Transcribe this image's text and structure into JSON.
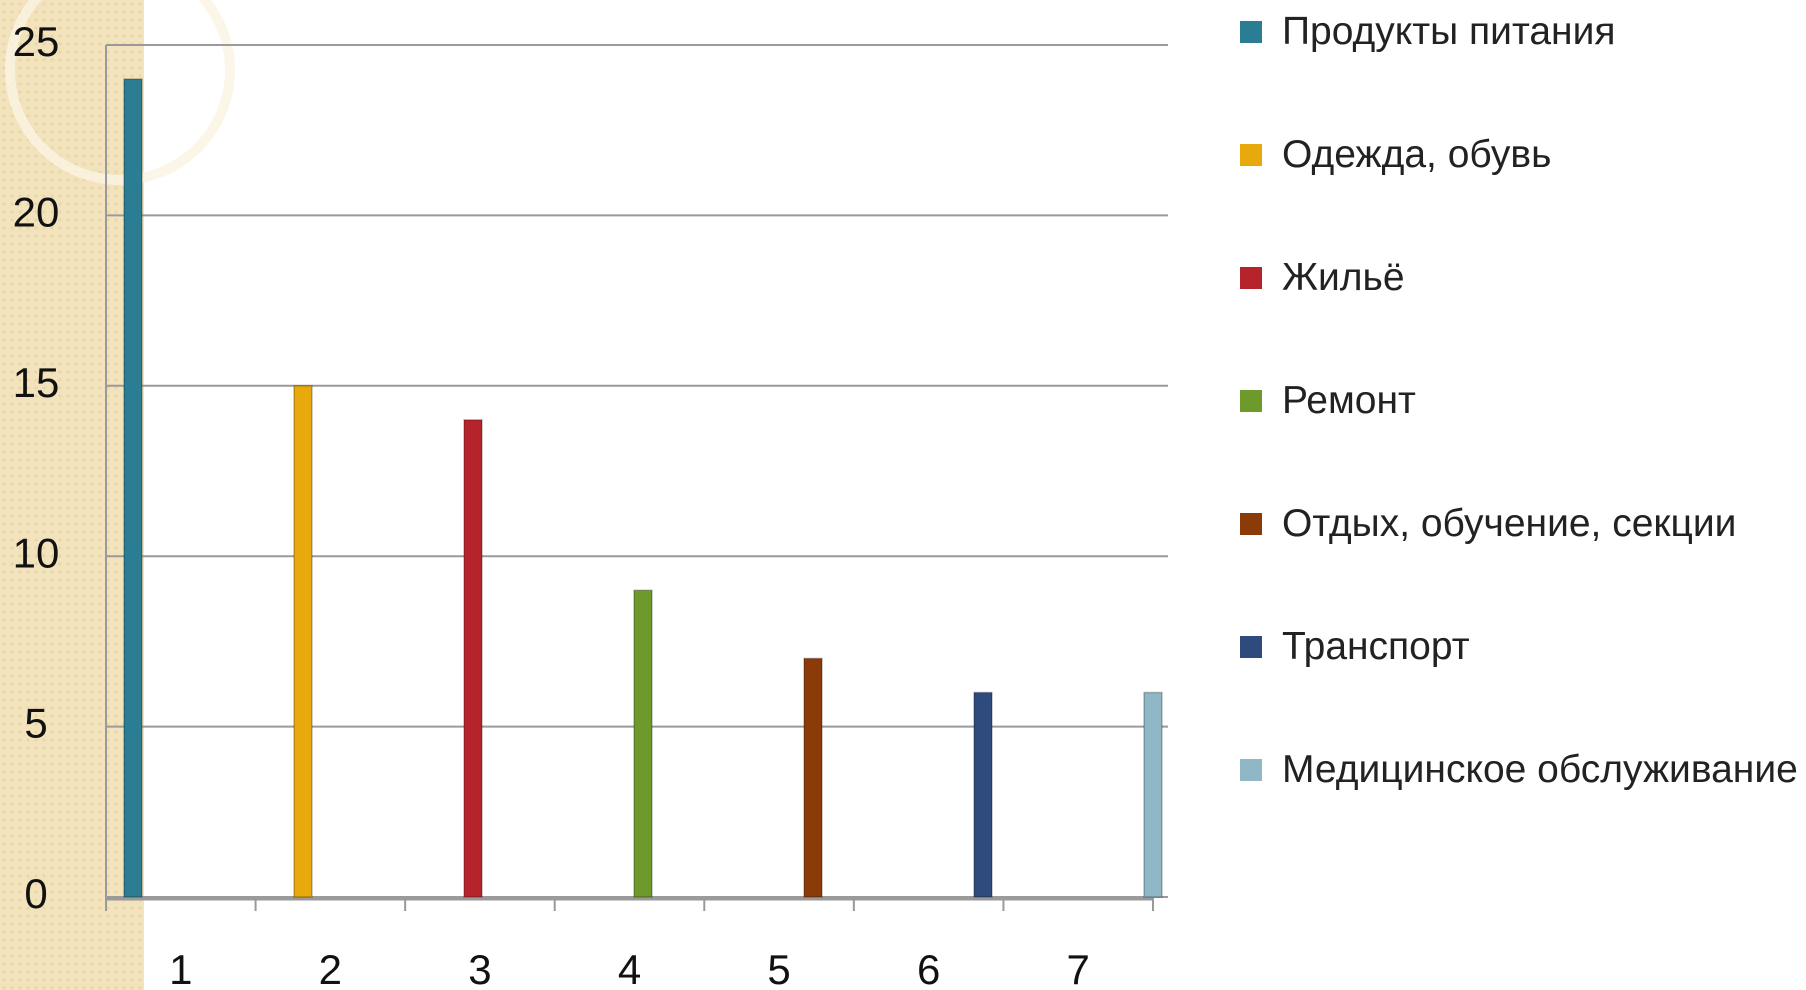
{
  "chart_data": {
    "type": "bar",
    "categories": [
      "1",
      "2",
      "3",
      "4",
      "5",
      "6",
      "7"
    ],
    "series": [
      {
        "name": "Продукты питания",
        "color": "#2a7d93",
        "values": [
          24,
          null,
          null,
          null,
          null,
          null,
          null
        ]
      },
      {
        "name": "Одежда, обувь",
        "color": "#e8a90c",
        "values": [
          null,
          15,
          null,
          null,
          null,
          null,
          null
        ]
      },
      {
        "name": "Жильё",
        "color": "#b6232b",
        "values": [
          null,
          null,
          14,
          null,
          null,
          null,
          null
        ]
      },
      {
        "name": "Ремонт",
        "color": "#6e9a2b",
        "values": [
          null,
          null,
          null,
          9,
          null,
          null,
          null
        ]
      },
      {
        "name": "Отдых, обучение, секции",
        "color": "#8b3b08",
        "values": [
          null,
          null,
          null,
          null,
          7,
          null,
          null
        ]
      },
      {
        "name": "Транспорт",
        "color": "#2f4a7c",
        "values": [
          null,
          null,
          null,
          null,
          null,
          6,
          null
        ]
      },
      {
        "name": "Медицинское обслуживание",
        "color": "#8fb7c6",
        "values": [
          null,
          null,
          null,
          null,
          null,
          null,
          6
        ]
      }
    ],
    "ylim": [
      0,
      25
    ],
    "yticks": [
      0,
      5,
      10,
      15,
      20,
      25
    ],
    "grid": true,
    "legend": "right"
  }
}
